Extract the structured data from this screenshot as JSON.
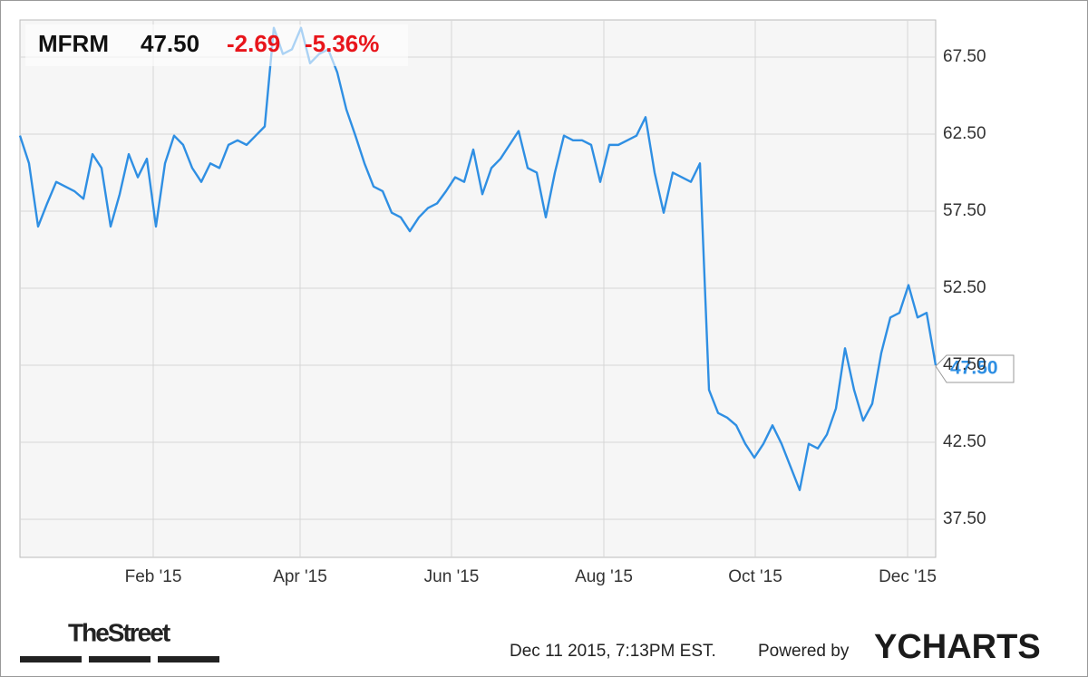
{
  "chart_data": {
    "type": "line",
    "ticker": "MFRM",
    "price": "47.50",
    "change": "-2.69",
    "change_pct": "-5.36%",
    "series": [
      {
        "name": "MFRM",
        "color": "#2f8fe3",
        "values": [
          62.4,
          60.6,
          56.5,
          58.0,
          59.4,
          59.1,
          58.8,
          58.3,
          61.2,
          60.3,
          56.5,
          58.6,
          61.2,
          59.7,
          60.9,
          56.5,
          60.6,
          62.4,
          61.8,
          60.3,
          59.4,
          60.6,
          60.3,
          61.8,
          62.1,
          61.8,
          62.4,
          63.0,
          69.4,
          67.7,
          68.0,
          69.4,
          67.1,
          67.7,
          68.0,
          66.5,
          64.1,
          62.4,
          60.6,
          59.1,
          58.8,
          57.4,
          57.1,
          56.2,
          57.1,
          57.7,
          58.0,
          58.8,
          59.7,
          59.4,
          61.5,
          58.6,
          60.3,
          60.9,
          61.8,
          62.7,
          60.3,
          60.0,
          57.1,
          60.0,
          62.4,
          62.1,
          62.1,
          61.8,
          59.4,
          61.8,
          61.8,
          62.1,
          62.4,
          63.6,
          60.0,
          57.4,
          60.0,
          59.7,
          59.4,
          60.6,
          45.9,
          44.4,
          44.1,
          43.6,
          42.4,
          41.5,
          42.4,
          43.6,
          42.4,
          40.9,
          39.4,
          42.4,
          42.1,
          43.0,
          44.7,
          48.6,
          45.9,
          43.9,
          45.0,
          48.3,
          50.6,
          50.9,
          52.7,
          50.6,
          50.9,
          47.5
        ]
      }
    ],
    "xlim": [
      0,
      101
    ],
    "xticks": [
      {
        "value": 14.7,
        "label": "Feb '15"
      },
      {
        "value": 30.9,
        "label": "Apr '15"
      },
      {
        "value": 47.6,
        "label": "Jun '15"
      },
      {
        "value": 64.4,
        "label": "Aug '15"
      },
      {
        "value": 81.1,
        "label": "Oct '15"
      },
      {
        "value": 97.9,
        "label": "Dec '15"
      }
    ],
    "ylim": [
      35.03,
      69.91
    ],
    "yticks": [
      {
        "value": 37.5,
        "label": "37.50"
      },
      {
        "value": 42.5,
        "label": "42.50"
      },
      {
        "value": 47.5,
        "label": "47.50"
      },
      {
        "value": 52.5,
        "label": "52.50"
      },
      {
        "value": 57.5,
        "label": "57.50"
      },
      {
        "value": 62.5,
        "label": "62.50"
      },
      {
        "value": 67.5,
        "label": "67.50"
      }
    ],
    "grid": true,
    "footer_source": "TheStreet",
    "timestamp": "Dec 11 2015, 7:13PM EST.",
    "powered_by": "Powered by",
    "brand": "YCHARTS"
  }
}
